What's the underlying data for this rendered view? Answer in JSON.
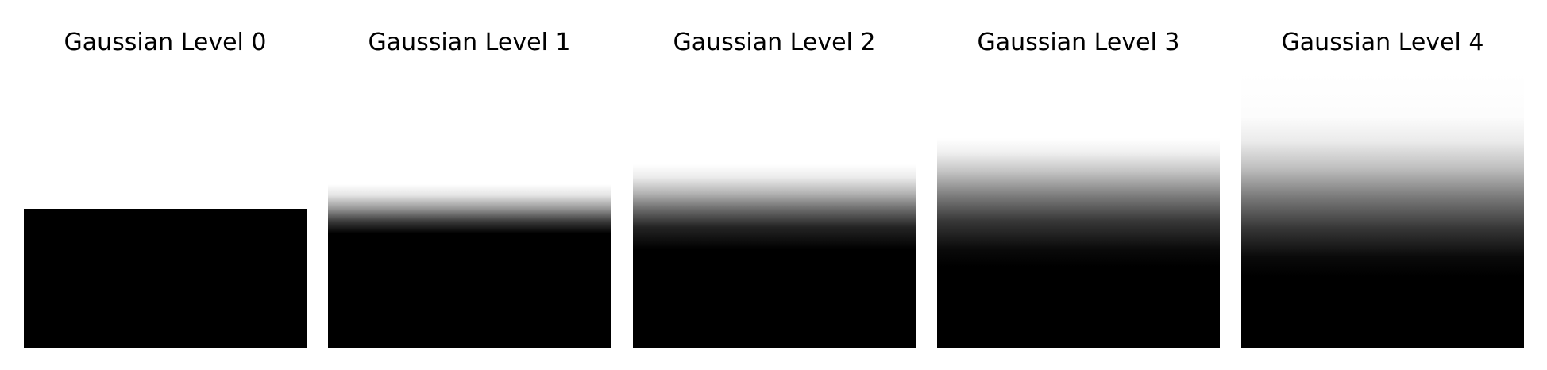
{
  "panels": [
    {
      "title": "Gaussian Level 0",
      "level": 0,
      "appearance": "sharp horizontal edge: white above, black below"
    },
    {
      "title": "Gaussian Level 1",
      "level": 1,
      "appearance": "slightly blurred edge"
    },
    {
      "title": "Gaussian Level 2",
      "level": 2,
      "appearance": "moderately blurred edge"
    },
    {
      "title": "Gaussian Level 3",
      "level": 3,
      "appearance": "strongly blurred edge"
    },
    {
      "title": "Gaussian Level 4",
      "level": 4,
      "appearance": "very strongly blurred edge"
    }
  ],
  "colors": {
    "background": "#ffffff",
    "foreground": "#000000",
    "title_text": "#000000"
  }
}
